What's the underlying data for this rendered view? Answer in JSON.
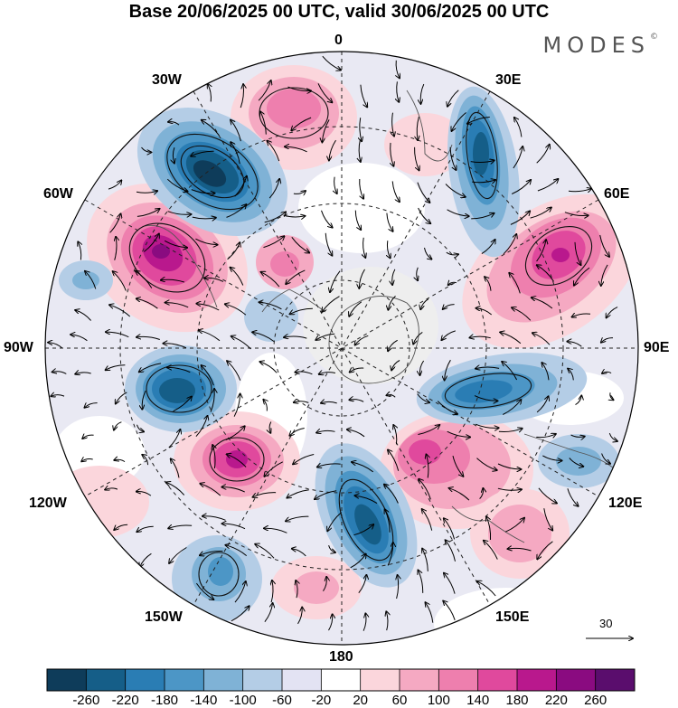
{
  "title": "Base 20/06/2025 00 UTC, valid 30/06/2025 00 UTC",
  "brand": "MODES",
  "brand_mark": "©",
  "longitude_labels": {
    "top": "0",
    "top_left": "30W",
    "top_right": "30E",
    "upper_left": "60W",
    "upper_right": "60E",
    "left": "90W",
    "right": "90E",
    "lower_left": "120W",
    "lower_right": "120E",
    "bottom_left": "150W",
    "bottom_right": "150E",
    "bottom": "180"
  },
  "reference_vector": {
    "label": "30",
    "icon": "arrow-right-icon"
  },
  "colorbar": {
    "ticks": [
      "-260",
      "-220",
      "-180",
      "-140",
      "-100",
      "-60",
      "-20",
      "20",
      "60",
      "100",
      "140",
      "180",
      "220",
      "260"
    ],
    "colors": [
      "#0e3c5a",
      "#155e88",
      "#2a7db4",
      "#4c96c6",
      "#7fb2d6",
      "#b4cde6",
      "#e3e3f3",
      "#ffffff",
      "#fbd6dc",
      "#f5a9c2",
      "#ee7fae",
      "#e0499d",
      "#b9188d",
      "#8a0b80",
      "#5a0d6d"
    ]
  },
  "anomaly_cells": [
    {
      "kind": "negative",
      "level": 5
    },
    {
      "kind": "positive",
      "level": 5
    }
  ]
}
